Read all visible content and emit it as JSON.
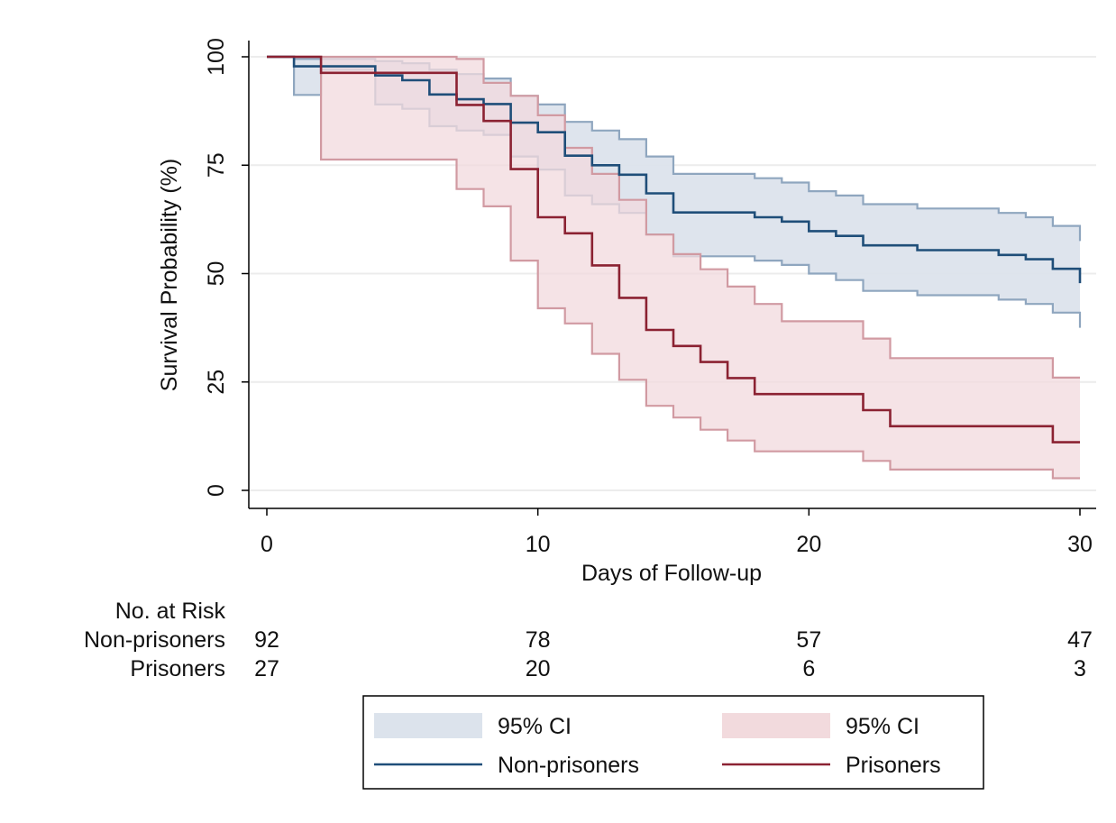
{
  "chart_data": {
    "type": "line",
    "subtype": "kaplan-meier step survival curves with 95% CI bands",
    "xlabel": "Days of Follow-up",
    "ylabel": "Survival Probability (%)",
    "xlim": [
      0,
      30
    ],
    "ylim": [
      0,
      100
    ],
    "xticks": [
      0,
      10,
      20,
      30
    ],
    "yticks": [
      0,
      25,
      50,
      75,
      100
    ],
    "grid": "horizontal",
    "series": [
      {
        "name": "Non-prisoners",
        "color": "#1f4e79",
        "ci_color": "#dce3ec",
        "ci_edge_color": "#8fa6bf",
        "steps": [
          [
            0,
            100
          ],
          [
            1,
            97.8
          ],
          [
            4,
            95.7
          ],
          [
            5,
            94.6
          ],
          [
            6,
            91.3
          ],
          [
            7,
            90.2
          ],
          [
            8,
            89.1
          ],
          [
            9,
            84.8
          ],
          [
            10,
            82.6
          ],
          [
            11,
            77.2
          ],
          [
            12,
            75
          ],
          [
            13,
            72.8
          ],
          [
            14,
            68.5
          ],
          [
            15,
            64.1
          ],
          [
            18,
            63
          ],
          [
            19,
            62
          ],
          [
            20,
            59.8
          ],
          [
            21,
            58.7
          ],
          [
            22,
            56.5
          ],
          [
            24,
            55.4
          ],
          [
            27,
            54.3
          ],
          [
            28,
            53.3
          ],
          [
            29,
            51.1
          ],
          [
            30,
            47.8
          ]
        ],
        "ci_upper": [
          [
            0,
            100
          ],
          [
            1,
            99.5
          ],
          [
            4,
            99
          ],
          [
            5,
            98.5
          ],
          [
            6,
            97
          ],
          [
            7,
            96
          ],
          [
            8,
            95
          ],
          [
            9,
            91
          ],
          [
            10,
            89
          ],
          [
            11,
            85
          ],
          [
            12,
            83
          ],
          [
            13,
            81
          ],
          [
            14,
            77
          ],
          [
            15,
            73
          ],
          [
            18,
            72
          ],
          [
            19,
            71
          ],
          [
            20,
            69
          ],
          [
            21,
            68
          ],
          [
            22,
            66
          ],
          [
            24,
            65
          ],
          [
            27,
            64
          ],
          [
            28,
            63
          ],
          [
            29,
            61
          ],
          [
            30,
            57.5
          ]
        ],
        "ci_lower": [
          [
            0,
            100
          ],
          [
            1,
            91.2
          ],
          [
            2,
            97
          ],
          [
            4,
            89
          ],
          [
            5,
            88
          ],
          [
            6,
            84
          ],
          [
            7,
            83
          ],
          [
            8,
            82
          ],
          [
            9,
            77
          ],
          [
            10,
            74
          ],
          [
            11,
            68
          ],
          [
            12,
            66
          ],
          [
            13,
            64
          ],
          [
            14,
            59
          ],
          [
            15,
            54
          ],
          [
            18,
            53
          ],
          [
            19,
            52
          ],
          [
            20,
            50
          ],
          [
            21,
            48.5
          ],
          [
            22,
            46
          ],
          [
            24,
            45
          ],
          [
            27,
            44
          ],
          [
            28,
            43
          ],
          [
            29,
            41
          ],
          [
            30,
            37.5
          ]
        ]
      },
      {
        "name": "Prisoners",
        "color": "#8b2232",
        "ci_color": "#f2dadd",
        "ci_edge_color": "#d19aa2",
        "steps": [
          [
            0,
            100
          ],
          [
            2,
            96.3
          ],
          [
            7,
            88.9
          ],
          [
            8,
            85.2
          ],
          [
            9,
            74.1
          ],
          [
            10,
            63
          ],
          [
            11,
            59.3
          ],
          [
            12,
            51.9
          ],
          [
            13,
            44.4
          ],
          [
            14,
            37
          ],
          [
            15,
            33.3
          ],
          [
            16,
            29.6
          ],
          [
            17,
            25.9
          ],
          [
            18,
            22.2
          ],
          [
            22,
            18.5
          ],
          [
            23,
            14.8
          ],
          [
            29,
            11.1
          ],
          [
            30,
            11.1
          ]
        ],
        "ci_upper": [
          [
            0,
            100
          ],
          [
            7,
            99.5
          ],
          [
            8,
            94
          ],
          [
            9,
            91
          ],
          [
            10,
            86.5
          ],
          [
            11,
            79
          ],
          [
            12,
            73
          ],
          [
            13,
            67
          ],
          [
            14,
            59
          ],
          [
            15,
            54.5
          ],
          [
            16,
            51
          ],
          [
            17,
            47
          ],
          [
            18,
            43
          ],
          [
            19,
            39
          ],
          [
            22,
            35
          ],
          [
            23,
            30.5
          ],
          [
            29,
            26
          ],
          [
            30,
            26
          ]
        ],
        "ci_lower": [
          [
            0,
            100
          ],
          [
            2,
            76.3
          ],
          [
            7,
            69.5
          ],
          [
            8,
            65.5
          ],
          [
            9,
            53
          ],
          [
            10,
            42
          ],
          [
            11,
            38.5
          ],
          [
            12,
            31.5
          ],
          [
            13,
            25.5
          ],
          [
            14,
            19.5
          ],
          [
            15,
            16.8
          ],
          [
            16,
            14
          ],
          [
            17,
            11.5
          ],
          [
            18,
            9
          ],
          [
            22,
            6.8
          ],
          [
            23,
            4.8
          ],
          [
            29,
            2.8
          ],
          [
            30,
            2.8
          ]
        ]
      }
    ],
    "risk_table": {
      "title": "No. at Risk",
      "rows": [
        {
          "label": "Non-prisoners",
          "values": [
            "92",
            "78",
            "57",
            "47"
          ]
        },
        {
          "label": "Prisoners",
          "values": [
            "27",
            "20",
            "6",
            "3"
          ]
        }
      ]
    },
    "legend": {
      "position": "bottom",
      "entries": [
        {
          "label": "95% CI",
          "kind": "area",
          "series": 0
        },
        {
          "label": "95% CI",
          "kind": "area",
          "series": 1
        },
        {
          "label": "Non-prisoners",
          "kind": "line",
          "series": 0
        },
        {
          "label": "Prisoners",
          "kind": "line",
          "series": 1
        }
      ]
    }
  }
}
